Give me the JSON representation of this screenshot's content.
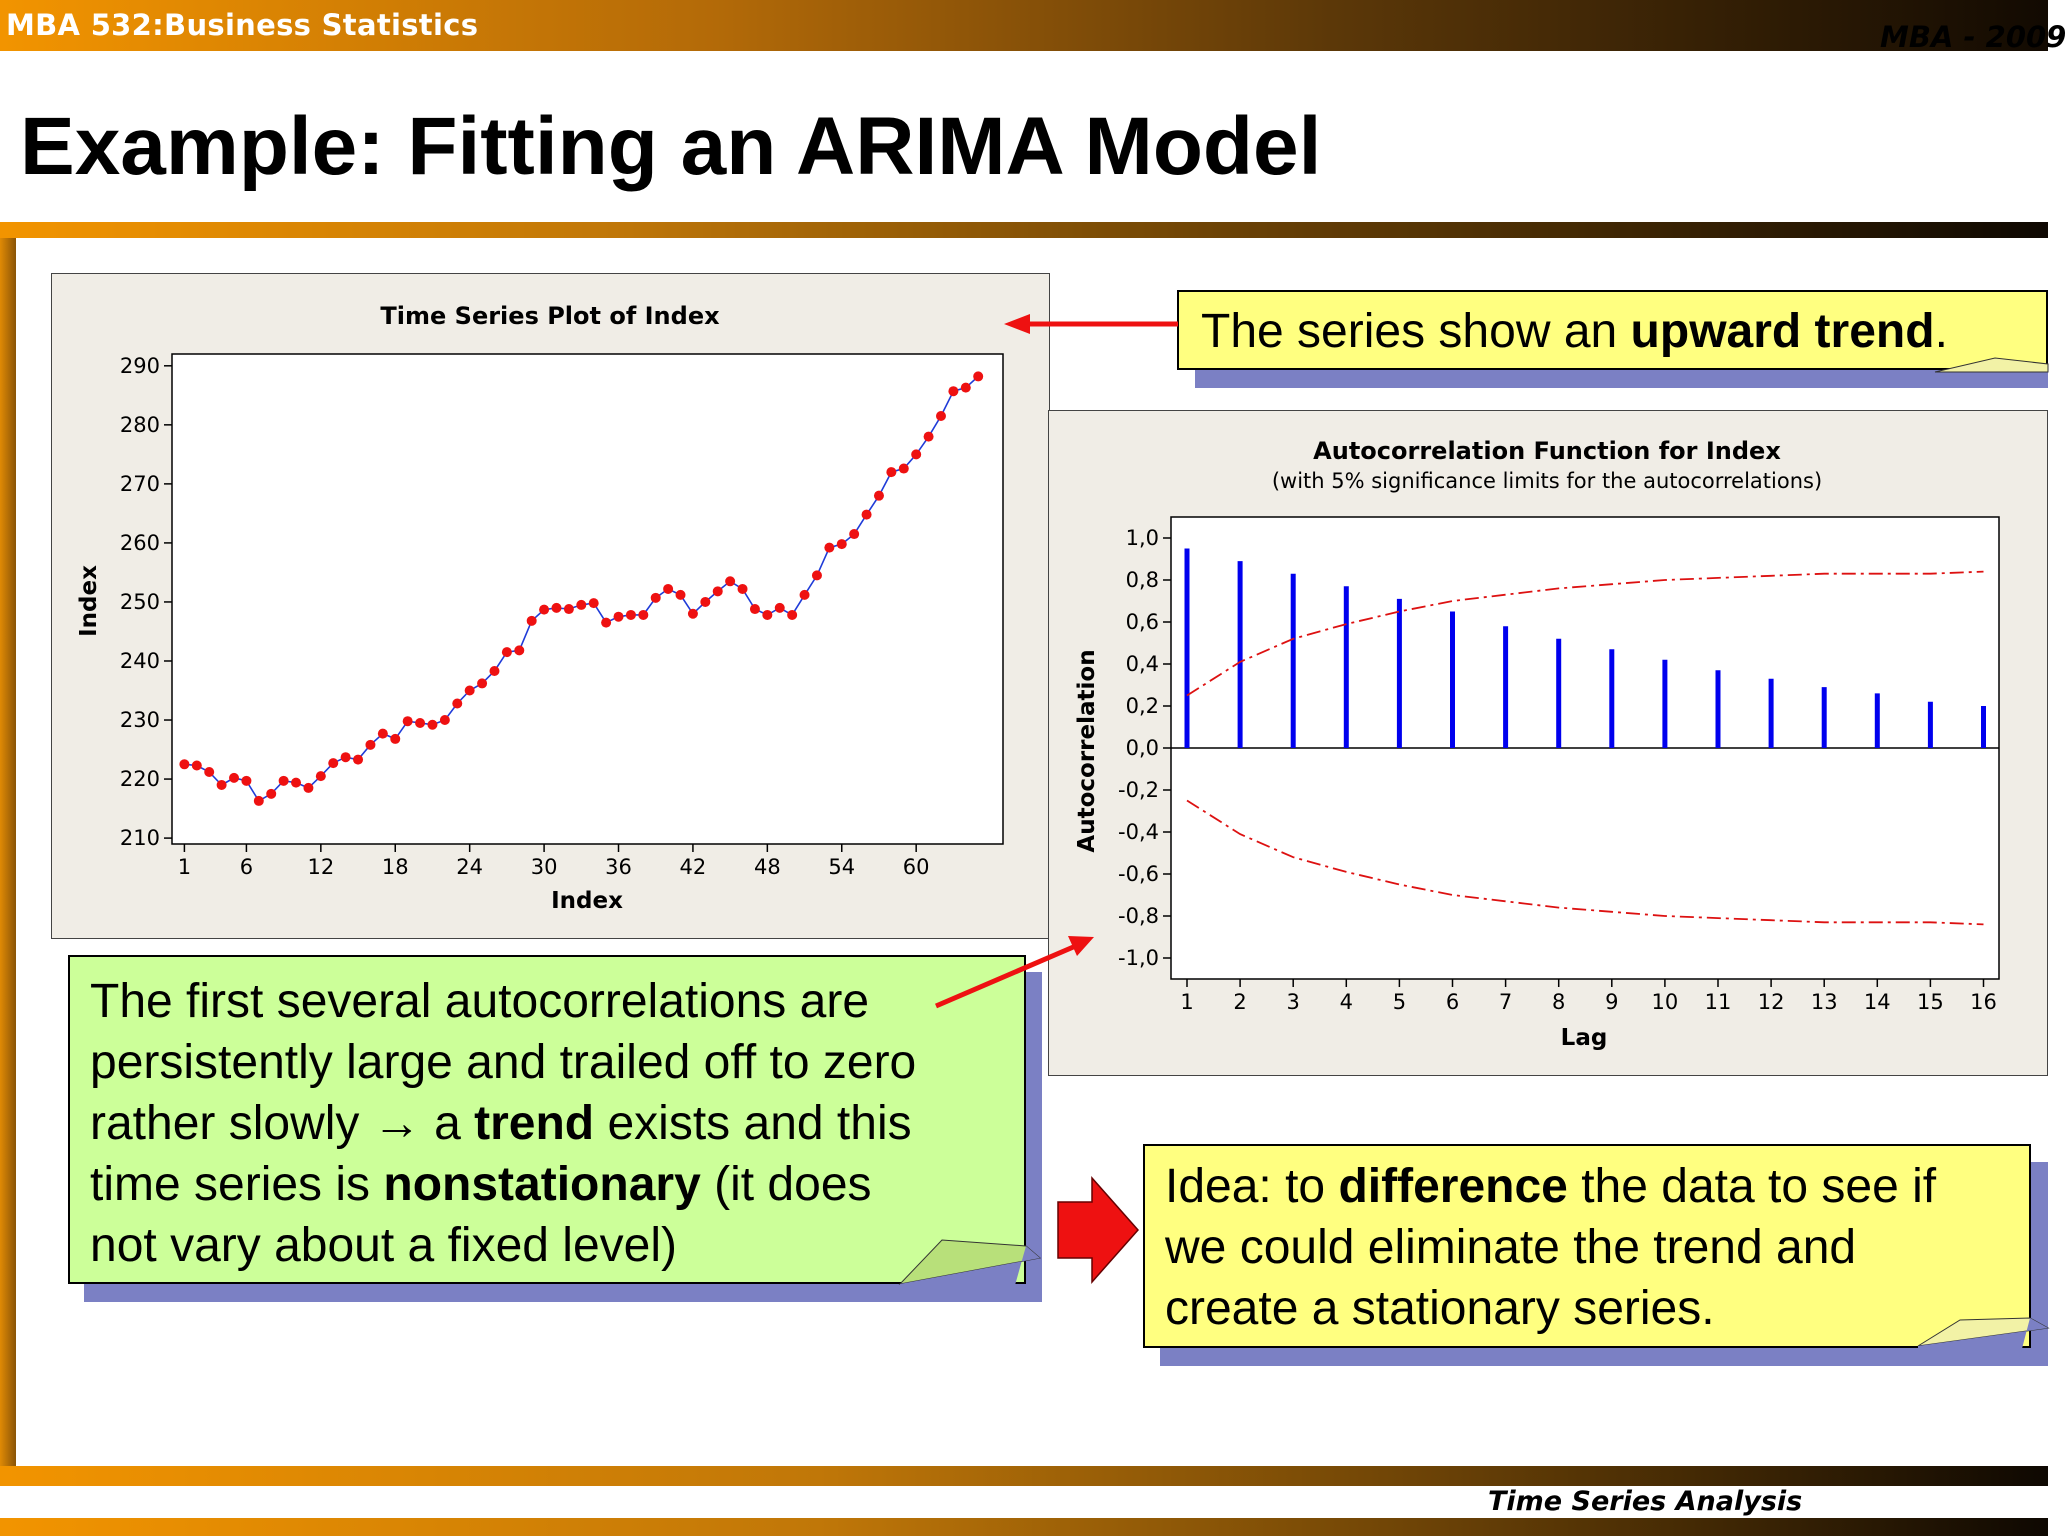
{
  "header": {
    "course": "MBA 532:Business Statistics",
    "right_tag": "MBA - 2009",
    "title": "Example: Fitting an ARIMA Model"
  },
  "footer": {
    "text": "Time Series Analysis"
  },
  "callouts": {
    "trend": {
      "pre": "The series show an ",
      "bold": "upward trend",
      "post": "."
    },
    "acf": {
      "line1": "The first several autocorrelations are",
      "line2": "persistently large and trailed off to zero",
      "line3_pre": "rather slowly → a ",
      "line3_bold": "trend",
      "line3_post": " exists and this",
      "line4_pre": "time series is ",
      "line4_bold": "nonstationary",
      "line4_post": " (it does",
      "line5": "not vary about a fixed level)"
    },
    "idea": {
      "line1_pre": "Idea: to ",
      "line1_bold": "difference",
      "line1_post": " the data to see if",
      "line2": "we could eliminate the trend and",
      "line3": "create a stationary series."
    }
  },
  "colors": {
    "series_line": "#1f3bd8",
    "series_point": "#ee1111",
    "acf_bar": "#0000ee",
    "limit_line": "#dd1111",
    "yellow_callout": "#ffff80",
    "green_callout": "#ccff99",
    "arrow": "#ee1111"
  },
  "chart_data": [
    {
      "type": "line",
      "title": "Time Series Plot of Index",
      "xlabel": "Index",
      "ylabel": "Index",
      "x_ticks": [
        "1",
        "6",
        "12",
        "18",
        "24",
        "30",
        "36",
        "42",
        "48",
        "54",
        "60"
      ],
      "x_tick_values": [
        1,
        6,
        12,
        18,
        24,
        30,
        36,
        42,
        48,
        54,
        60
      ],
      "y_ticks": [
        "210",
        "220",
        "230",
        "240",
        "250",
        "260",
        "270",
        "280",
        "290"
      ],
      "xlim": [
        0,
        67
      ],
      "ylim": [
        209,
        292
      ],
      "grid": false,
      "x": [
        1,
        2,
        3,
        4,
        5,
        6,
        7,
        8,
        9,
        10,
        11,
        12,
        13,
        14,
        15,
        16,
        17,
        18,
        19,
        20,
        21,
        22,
        23,
        24,
        25,
        26,
        27,
        28,
        29,
        30,
        31,
        32,
        33,
        34,
        35,
        36,
        37,
        38,
        39,
        40,
        41,
        42,
        43,
        44,
        45,
        46,
        47,
        48,
        49,
        50,
        51,
        52,
        53,
        54,
        55,
        56,
        57,
        58,
        59,
        60,
        61,
        62,
        63,
        64,
        65
      ],
      "values": [
        222.5,
        222.3,
        221.2,
        219.0,
        220.2,
        219.7,
        216.3,
        217.5,
        219.7,
        219.4,
        218.5,
        220.5,
        222.7,
        223.7,
        223.3,
        225.8,
        227.7,
        226.8,
        229.8,
        229.5,
        229.2,
        230.0,
        232.8,
        235.0,
        236.2,
        238.3,
        241.5,
        241.8,
        246.8,
        248.7,
        249.0,
        248.8,
        249.5,
        249.8,
        246.5,
        247.5,
        247.8,
        247.8,
        250.7,
        252.2,
        251.2,
        248.0,
        250.0,
        251.8,
        253.5,
        252.2,
        248.8,
        247.8,
        249.0,
        247.8,
        251.2,
        254.5,
        259.2,
        259.8,
        261.5,
        264.8,
        268.0,
        272.0,
        272.6,
        275.0,
        278.0,
        281.5,
        285.7,
        286.3,
        288.2
      ]
    },
    {
      "type": "bar",
      "title": "Autocorrelation Function for Index",
      "subtitle": "(with 5% significance limits for the autocorrelations)",
      "xlabel": "Lag",
      "ylabel": "Autocorrelation",
      "categories": [
        "1",
        "2",
        "3",
        "4",
        "5",
        "6",
        "7",
        "8",
        "9",
        "10",
        "11",
        "12",
        "13",
        "14",
        "15",
        "16"
      ],
      "values": [
        0.95,
        0.89,
        0.83,
        0.77,
        0.71,
        0.65,
        0.58,
        0.52,
        0.47,
        0.42,
        0.37,
        0.33,
        0.29,
        0.26,
        0.22,
        0.2
      ],
      "y_ticks": [
        "1,0",
        "0,8",
        "0,6",
        "0,4",
        "0,2",
        "0,0",
        "-0,2",
        "-0,4",
        "-0,6",
        "-0,8",
        "-1,0"
      ],
      "ylim": [
        -1.1,
        1.1
      ],
      "series": [
        {
          "name": "upper limit",
          "values": [
            0.25,
            0.41,
            0.52,
            0.59,
            0.65,
            0.7,
            0.73,
            0.76,
            0.78,
            0.8,
            0.81,
            0.82,
            0.83,
            0.83,
            0.83,
            0.84
          ]
        },
        {
          "name": "lower limit",
          "values": [
            -0.25,
            -0.41,
            -0.52,
            -0.59,
            -0.65,
            -0.7,
            -0.73,
            -0.76,
            -0.78,
            -0.8,
            -0.81,
            -0.82,
            -0.83,
            -0.83,
            -0.83,
            -0.84
          ]
        }
      ]
    }
  ]
}
